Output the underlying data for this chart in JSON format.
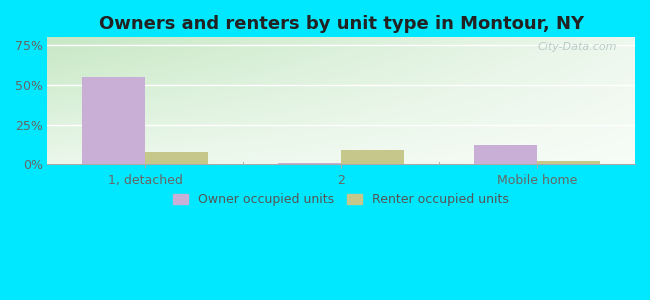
{
  "title": "Owners and renters by unit type in Montour, NY",
  "categories": [
    "1, detached",
    "2",
    "Mobile home"
  ],
  "owner_values": [
    55,
    1,
    12
  ],
  "renter_values": [
    8,
    9,
    2
  ],
  "owner_color": "#c9aed6",
  "renter_color": "#c5c88a",
  "yticks": [
    0,
    25,
    50,
    75
  ],
  "ytick_labels": [
    "0%",
    "25%",
    "50%",
    "75%"
  ],
  "ylim": [
    0,
    80
  ],
  "bar_width": 0.32,
  "outer_bg": "#00e8ff",
  "watermark": "City-Data.com",
  "title_fontsize": 13,
  "axis_fontsize": 9,
  "legend_fontsize": 9,
  "bg_color_topleft": "#c8e8c4",
  "bg_color_topright": "#e8f4e8",
  "bg_color_bottom": "#f0faf0"
}
